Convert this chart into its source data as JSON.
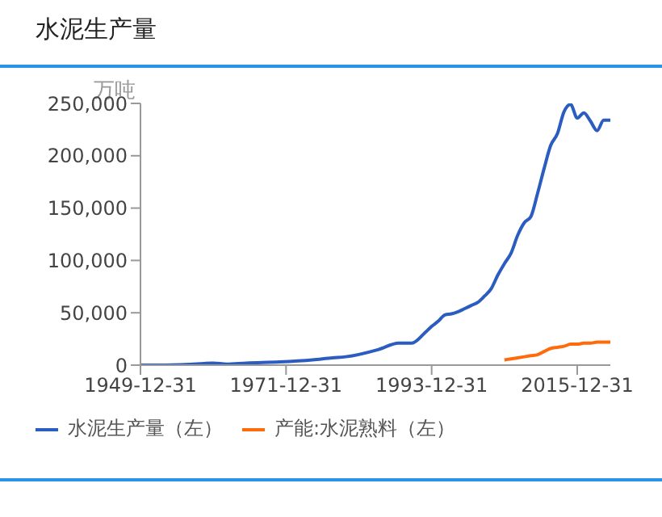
{
  "chart_data": {
    "type": "line",
    "title": "水泥生产量",
    "ylabel": "万吨",
    "xlim": [
      "1949-12-31",
      "2020-12-31"
    ],
    "xticks": [
      "1949-12-31",
      "1971-12-31",
      "1993-12-31",
      "2015-12-31"
    ],
    "ylim": [
      0,
      250000
    ],
    "yticks": [
      0,
      {
        "value": 50000,
        "label": "50,000"
      },
      {
        "value": 100000,
        "label": "100,000"
      },
      {
        "value": 150000,
        "label": "150,000"
      },
      {
        "value": 200000,
        "label": "200,000"
      },
      {
        "value": 250000,
        "label": "250,000"
      }
    ],
    "legend": "bottom",
    "marker": "none",
    "line_style": "solid",
    "series": [
      {
        "name": "水泥生产量（左）",
        "color": "#2b5cc0",
        "x": [
          "1949-12-31",
          "1952-12-31",
          "1957-12-31",
          "1960-12-31",
          "1962-12-31",
          "1965-12-31",
          "1970-12-31",
          "1975-12-31",
          "1978-12-31",
          "1980-12-31",
          "1985-12-31",
          "1988-12-31",
          "1990-12-31",
          "1992-12-31",
          "1993-12-31",
          "1994-12-31",
          "1995-12-31",
          "1996-12-31",
          "1997-12-31",
          "1998-12-31",
          "1999-12-31",
          "2000-12-31",
          "2001-12-31",
          "2002-12-31",
          "2003-12-31",
          "2004-12-31",
          "2005-12-31",
          "2006-12-31",
          "2007-12-31",
          "2008-12-31",
          "2009-12-31",
          "2010-12-31",
          "2011-12-31",
          "2012-12-31",
          "2013-12-31",
          "2014-12-31",
          "2015-12-31",
          "2016-12-31",
          "2017-12-31",
          "2018-12-31",
          "2019-12-31",
          "2020-12-31"
        ],
        "values": [
          0,
          0,
          1000,
          2000,
          1000,
          2000,
          3000,
          5000,
          7000,
          8000,
          15000,
          21000,
          21000,
          31000,
          37000,
          42000,
          48000,
          49000,
          51000,
          54000,
          57000,
          60000,
          66000,
          73000,
          86000,
          97000,
          107000,
          124000,
          136000,
          142000,
          164000,
          188000,
          210000,
          221000,
          242000,
          249000,
          236000,
          241000,
          233000,
          224000,
          234000,
          234000
        ]
      },
      {
        "name": "产能:水泥熟料（左）",
        "color": "#ff6a0a",
        "x": [
          "2004-12-31",
          "2005-12-31",
          "2006-12-31",
          "2007-12-31",
          "2008-12-31",
          "2009-12-31",
          "2010-12-31",
          "2011-12-31",
          "2012-12-31",
          "2013-12-31",
          "2014-12-31",
          "2015-12-31",
          "2016-12-31",
          "2017-12-31",
          "2018-12-31",
          "2019-12-31",
          "2020-12-31"
        ],
        "values": [
          5000,
          6000,
          7000,
          8000,
          9000,
          10000,
          13000,
          16000,
          17000,
          18000,
          20000,
          20000,
          21000,
          21000,
          22000,
          22000,
          22000
        ]
      }
    ]
  }
}
